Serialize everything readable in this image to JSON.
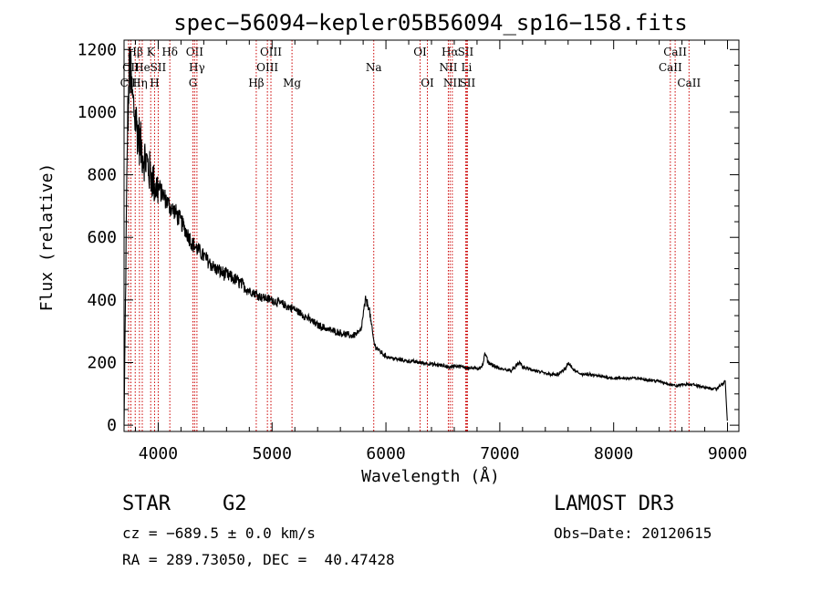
{
  "chart_data": {
    "type": "line",
    "title": "spec−56094−kepler05B56094_sp16−158.fits",
    "xlabel": "Wavelength (Å)",
    "ylabel": "Flux (relative)",
    "xlim": [
      3700,
      9100
    ],
    "ylim": [
      -20,
      1230
    ],
    "x_ticks": [
      4000,
      5000,
      6000,
      7000,
      8000,
      9000
    ],
    "x_tick_labels": [
      "4000",
      "5000",
      "6000",
      "7000",
      "8000",
      "9000"
    ],
    "y_ticks": [
      0,
      200,
      400,
      600,
      800,
      1000,
      1200
    ],
    "y_tick_labels": [
      "0",
      "200",
      "400",
      "600",
      "800",
      "1000",
      "1200"
    ],
    "line_color": "#000000",
    "marker_color": "#cc0000",
    "spectrum": {
      "x": [
        3700,
        3730,
        3750,
        3770,
        3790,
        3810,
        3840,
        3870,
        3900,
        3930,
        3950,
        3970,
        4000,
        4050,
        4100,
        4150,
        4200,
        4260,
        4300,
        4350,
        4400,
        4500,
        4600,
        4700,
        4800,
        4860,
        4900,
        5000,
        5100,
        5200,
        5300,
        5400,
        5500,
        5600,
        5700,
        5780,
        5820,
        5850,
        5880,
        5900,
        5950,
        6000,
        6100,
        6200,
        6300,
        6400,
        6500,
        6563,
        6600,
        6700,
        6800,
        6850,
        6870,
        6900,
        7000,
        7100,
        7180,
        7200,
        7300,
        7400,
        7500,
        7580,
        7600,
        7650,
        7700,
        7800,
        7900,
        8000,
        8100,
        8200,
        8300,
        8400,
        8500,
        8550,
        8600,
        8700,
        8800,
        8900,
        8980,
        9000
      ],
      "y": [
        0,
        950,
        1150,
        1050,
        1000,
        960,
        900,
        860,
        840,
        800,
        790,
        760,
        760,
        730,
        700,
        680,
        650,
        610,
        580,
        560,
        540,
        500,
        480,
        460,
        430,
        420,
        410,
        400,
        385,
        370,
        345,
        320,
        305,
        295,
        285,
        300,
        400,
        380,
        300,
        255,
        235,
        220,
        210,
        205,
        200,
        195,
        190,
        185,
        190,
        185,
        180,
        190,
        230,
        200,
        180,
        175,
        200,
        185,
        175,
        165,
        160,
        180,
        200,
        175,
        165,
        160,
        155,
        150,
        150,
        150,
        145,
        140,
        130,
        125,
        130,
        130,
        120,
        115,
        140,
        0
      ]
    },
    "line_markers": [
      {
        "label": "Hβ",
        "x": 3798,
        "row": 1
      },
      {
        "label": "K",
        "x": 3934,
        "row": 1
      },
      {
        "label": "Hδ",
        "x": 4102,
        "row": 1
      },
      {
        "label": "OII",
        "x": 4320,
        "row": 1
      },
      {
        "label": "OIII",
        "x": 4990,
        "row": 1
      },
      {
        "label": "OI",
        "x": 6300,
        "row": 1
      },
      {
        "label": "Hα",
        "x": 6563,
        "row": 1
      },
      {
        "label": "SII",
        "x": 6700,
        "row": 1
      },
      {
        "label": "CaII",
        "x": 8540,
        "row": 1
      },
      {
        "label": "CII",
        "x": 3760,
        "row": 2
      },
      {
        "label": "He",
        "x": 3860,
        "row": 2
      },
      {
        "label": "SII",
        "x": 4000,
        "row": 2
      },
      {
        "label": "Hγ",
        "x": 4340,
        "row": 2
      },
      {
        "label": "OIII",
        "x": 4959,
        "row": 2
      },
      {
        "label": "Na",
        "x": 5893,
        "row": 2
      },
      {
        "label": "NII",
        "x": 6548,
        "row": 2
      },
      {
        "label": "Li",
        "x": 6708,
        "row": 2
      },
      {
        "label": "CaII",
        "x": 8498,
        "row": 2
      },
      {
        "label": "CII",
        "x": 3740,
        "row": 3
      },
      {
        "label": "Hη",
        "x": 3835,
        "row": 3
      },
      {
        "label": "H",
        "x": 3968,
        "row": 3
      },
      {
        "label": "G",
        "x": 4305,
        "row": 3
      },
      {
        "label": "Hβ",
        "x": 4861,
        "row": 3
      },
      {
        "label": "Mg",
        "x": 5175,
        "row": 3
      },
      {
        "label": "OI",
        "x": 6364,
        "row": 3
      },
      {
        "label": "NII",
        "x": 6583,
        "row": 3
      },
      {
        "label": "SII",
        "x": 6716,
        "row": 3
      },
      {
        "label": "CaII",
        "x": 8662,
        "row": 3
      }
    ]
  },
  "info": {
    "object_class": "STAR",
    "subclass": "G2",
    "survey": "LAMOST DR3",
    "cz": "cz = −689.5 ± 0.0 km/s",
    "obs_date": "Obs−Date: 20120615",
    "coords": "RA = 289.73050, DEC =  40.47428"
  }
}
